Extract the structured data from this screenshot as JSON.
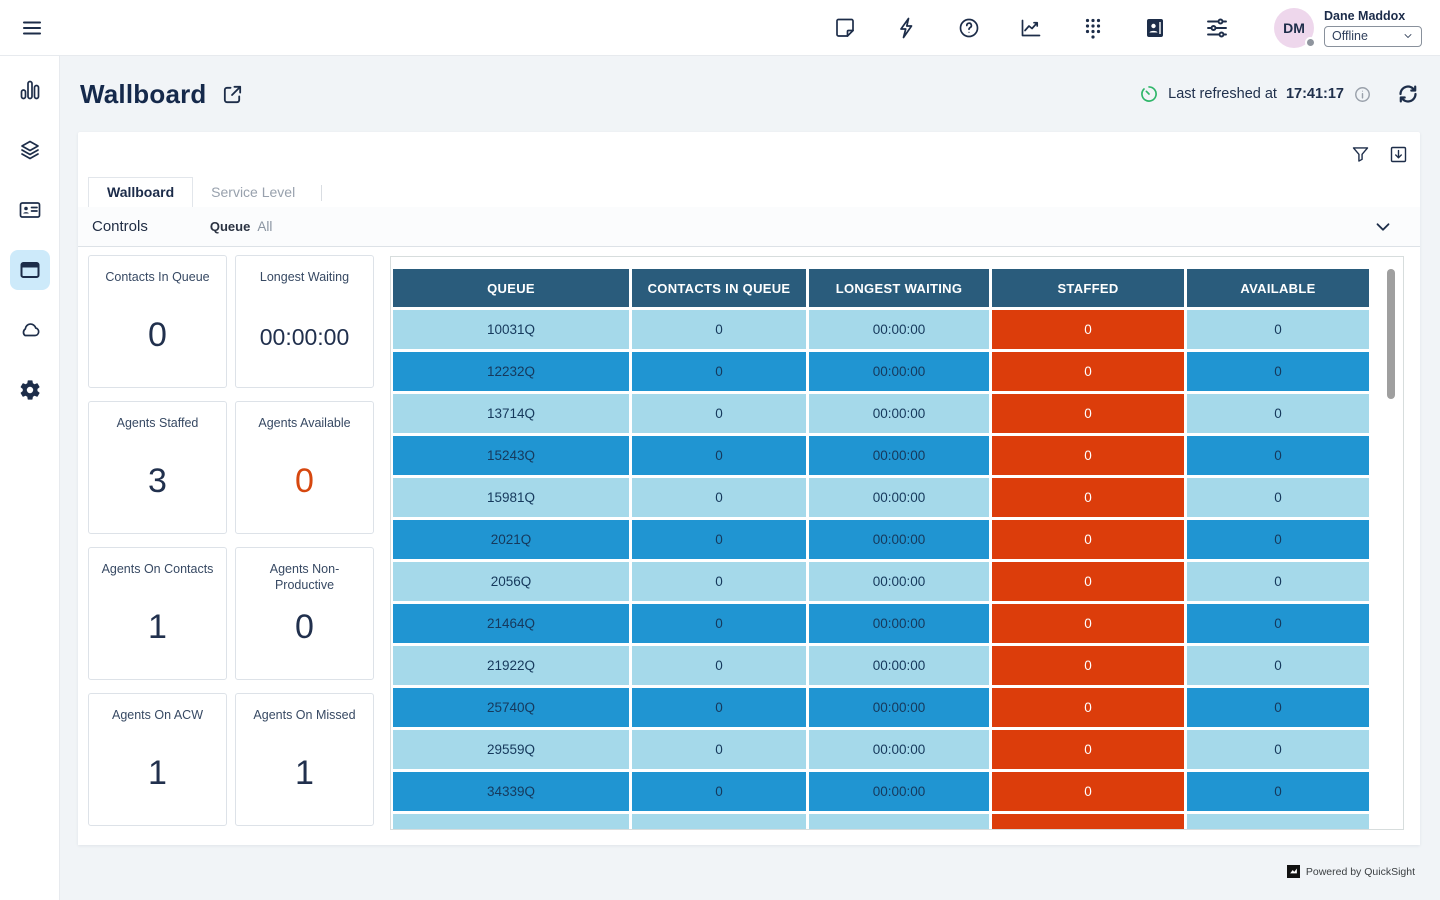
{
  "topbar": {
    "user": {
      "initials": "DM",
      "name": "Dane Maddox",
      "status": "Offline"
    },
    "icons": [
      "notes-icon",
      "quick-connects-icon",
      "help-icon",
      "metrics-icon",
      "dialpad-icon",
      "directory-icon",
      "preferences-icon"
    ]
  },
  "sidebar": {
    "items": [
      "analytics",
      "queues",
      "contacts",
      "wallboard",
      "cloud",
      "settings"
    ],
    "active_item": "wallboard"
  },
  "header": {
    "title": "Wallboard",
    "last_refreshed_label": "Last refreshed at",
    "last_refreshed_time": "17:41:17"
  },
  "panel": {
    "tabs": [
      {
        "label": "Wallboard",
        "active": true
      },
      {
        "label": "Service Level",
        "active": false
      }
    ],
    "controls": {
      "label": "Controls",
      "filter_name": "Queue",
      "filter_value": "All"
    }
  },
  "kpis": [
    {
      "id": "contacts-in-queue",
      "label": "Contacts In Queue",
      "value": "0",
      "accent": false
    },
    {
      "id": "longest-waiting",
      "label": "Longest Waiting",
      "value": "00:00:00",
      "accent": false
    },
    {
      "id": "agents-staffed",
      "label": "Agents Staffed",
      "value": "3",
      "accent": false
    },
    {
      "id": "agents-available",
      "label": "Agents Available",
      "value": "0",
      "accent": true
    },
    {
      "id": "agents-on-contacts",
      "label": "Agents On Contacts",
      "value": "1",
      "accent": false
    },
    {
      "id": "agents-non-productive",
      "label": "Agents Non-Productive",
      "value": "0",
      "accent": false
    },
    {
      "id": "agents-on-acw",
      "label": "Agents On ACW",
      "value": "1",
      "accent": false
    },
    {
      "id": "agents-on-missed",
      "label": "Agents On Missed",
      "value": "1",
      "accent": false
    }
  ],
  "table": {
    "columns": [
      "QUEUE",
      "CONTACTS IN QUEUE",
      "LONGEST WAITING",
      "STAFFED",
      "AVAILABLE"
    ],
    "rows": [
      {
        "queue": "10031Q",
        "contacts": "0",
        "longest": "00:00:00",
        "staffed": "0",
        "available": "0"
      },
      {
        "queue": "12232Q",
        "contacts": "0",
        "longest": "00:00:00",
        "staffed": "0",
        "available": "0"
      },
      {
        "queue": "13714Q",
        "contacts": "0",
        "longest": "00:00:00",
        "staffed": "0",
        "available": "0"
      },
      {
        "queue": "15243Q",
        "contacts": "0",
        "longest": "00:00:00",
        "staffed": "0",
        "available": "0"
      },
      {
        "queue": "15981Q",
        "contacts": "0",
        "longest": "00:00:00",
        "staffed": "0",
        "available": "0"
      },
      {
        "queue": "2021Q",
        "contacts": "0",
        "longest": "00:00:00",
        "staffed": "0",
        "available": "0"
      },
      {
        "queue": "2056Q",
        "contacts": "0",
        "longest": "00:00:00",
        "staffed": "0",
        "available": "0"
      },
      {
        "queue": "21464Q",
        "contacts": "0",
        "longest": "00:00:00",
        "staffed": "0",
        "available": "0"
      },
      {
        "queue": "21922Q",
        "contacts": "0",
        "longest": "00:00:00",
        "staffed": "0",
        "available": "0"
      },
      {
        "queue": "25740Q",
        "contacts": "0",
        "longest": "00:00:00",
        "staffed": "0",
        "available": "0"
      },
      {
        "queue": "29559Q",
        "contacts": "0",
        "longest": "00:00:00",
        "staffed": "0",
        "available": "0"
      },
      {
        "queue": "34339Q",
        "contacts": "0",
        "longest": "00:00:00",
        "staffed": "0",
        "available": "0"
      }
    ],
    "partial_row_visible": true
  },
  "footer": {
    "powered_by": "Powered by QuickSight"
  },
  "colors": {
    "table_header_bg": "#2a5c7c",
    "row_light": "#a5d9ea",
    "row_blue": "#2095d2",
    "staffed_bg": "#dc3d0b",
    "accent_orange": "#d6470f",
    "refreshed_green": "#2eb669",
    "active_nav_bg": "#cdeafa",
    "avatar_bg": "#eed7ec"
  }
}
